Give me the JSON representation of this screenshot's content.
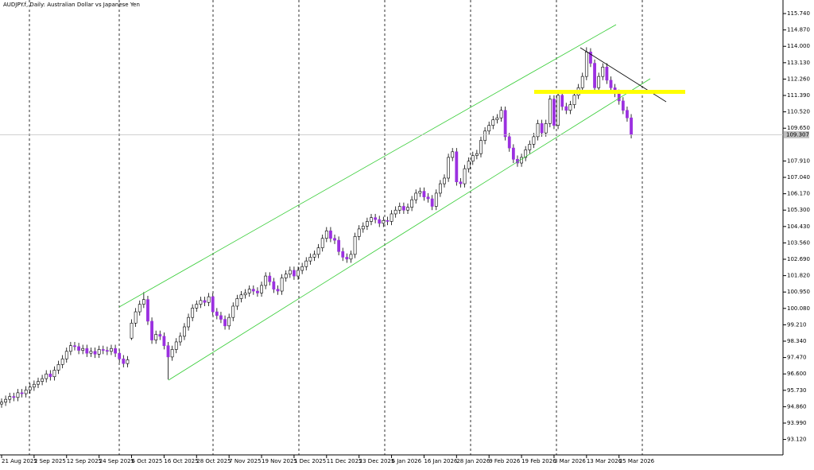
{
  "chart_data": {
    "type": "candlestick",
    "title": "AUDJPY.f, Daily:  Australian Dollar vs Japanese Yen",
    "up_color": "#ffffff",
    "down_color": "#9b30e0",
    "edge_color": "#000000",
    "ylim": [
      92.3,
      116.46
    ],
    "yticks": [
      {
        "value": 115.74,
        "label": "115.740"
      },
      {
        "value": 114.87,
        "label": "114.870"
      },
      {
        "value": 114,
        "label": "114.000"
      },
      {
        "value": 113.13,
        "label": "113.130"
      },
      {
        "value": 112.26,
        "label": "112.260"
      },
      {
        "value": 111.39,
        "label": "111.390"
      },
      {
        "value": 110.52,
        "label": "110.520"
      },
      {
        "value": 109.65,
        "label": "109.650"
      },
      {
        "value": 107.91,
        "label": "107.910"
      },
      {
        "value": 107.04,
        "label": "107.040"
      },
      {
        "value": 106.17,
        "label": "106.170"
      },
      {
        "value": 105.3,
        "label": "105.300"
      },
      {
        "value": 104.43,
        "label": "104.430"
      },
      {
        "value": 103.56,
        "label": "103.560"
      },
      {
        "value": 102.69,
        "label": "102.690"
      },
      {
        "value": 101.82,
        "label": "101.820"
      },
      {
        "value": 100.95,
        "label": "100.950"
      },
      {
        "value": 100.08,
        "label": "100.080"
      },
      {
        "value": 99.21,
        "label": "99.210"
      },
      {
        "value": 98.34,
        "label": "98.340"
      },
      {
        "value": 97.47,
        "label": "97.470"
      },
      {
        "value": 96.6,
        "label": "96.600"
      },
      {
        "value": 95.73,
        "label": "95.730"
      },
      {
        "value": 94.86,
        "label": "94.860"
      },
      {
        "value": 93.99,
        "label": "93.990"
      },
      {
        "value": 93.12,
        "label": "93.120"
      }
    ],
    "categories": [
      "21 Aug 2025",
      null,
      null,
      null,
      null,
      null,
      null,
      null,
      "2 Sep 2025",
      null,
      null,
      null,
      null,
      null,
      null,
      null,
      "12 Sep 2025",
      null,
      null,
      null,
      null,
      null,
      null,
      null,
      "24 Sep 2025",
      null,
      null,
      null,
      null,
      null,
      null,
      null,
      "6 Oct 2025",
      null,
      null,
      null,
      null,
      null,
      null,
      null,
      "16 Oct 2025",
      null,
      null,
      null,
      null,
      null,
      null,
      null,
      "28 Oct 2025",
      null,
      null,
      null,
      null,
      null,
      null,
      null,
      "7 Nov 2025",
      null,
      null,
      null,
      null,
      null,
      null,
      null,
      "19 Nov 2025",
      null,
      null,
      null,
      null,
      null,
      null,
      null,
      "1 Dec 2025",
      null,
      null,
      null,
      null,
      null,
      null,
      null,
      "11 Dec 2025",
      null,
      null,
      null,
      null,
      null,
      null,
      null,
      "23 Dec 2025",
      null,
      null,
      null,
      null,
      null,
      null,
      null,
      "6 Jan 2026",
      null,
      null,
      null,
      null,
      null,
      null,
      null,
      "16 Jan 2026",
      null,
      null,
      null,
      null,
      null,
      null,
      null,
      "28 Jan 2026",
      null,
      null,
      null,
      null,
      null,
      null,
      null,
      "9 Feb 2026",
      null,
      null,
      null,
      null,
      null,
      null,
      null,
      "19 Feb 2026",
      null,
      null,
      null,
      null,
      null,
      null,
      null,
      "3 Mar 2026",
      null,
      null,
      null,
      null,
      null,
      null,
      null,
      "13 Mar 2026",
      null,
      null,
      null,
      null,
      null,
      null,
      null,
      "25 Mar 2026",
      null,
      null,
      null
    ],
    "ohlc": [
      [
        95.0,
        95.3,
        94.8,
        95.1
      ],
      [
        95.1,
        95.45,
        94.9,
        95.25
      ],
      [
        95.25,
        95.6,
        95.05,
        95.4
      ],
      [
        95.4,
        95.6,
        95.15,
        95.35
      ],
      [
        95.35,
        95.8,
        95.15,
        95.6
      ],
      [
        95.6,
        95.8,
        95.35,
        95.55
      ],
      [
        95.55,
        95.95,
        95.35,
        95.75
      ],
      [
        95.75,
        96.1,
        95.55,
        95.9
      ],
      [
        95.9,
        96.25,
        95.7,
        96.05
      ],
      [
        96.05,
        96.4,
        95.85,
        96.2
      ],
      [
        96.2,
        96.55,
        96.0,
        96.35
      ],
      [
        96.35,
        96.8,
        96.15,
        96.6
      ],
      [
        96.6,
        96.8,
        96.25,
        96.45
      ],
      [
        96.45,
        97.0,
        96.25,
        96.8
      ],
      [
        96.8,
        97.3,
        96.6,
        97.1
      ],
      [
        97.1,
        97.6,
        96.9,
        97.4
      ],
      [
        97.4,
        98.0,
        97.2,
        97.8
      ],
      [
        97.8,
        98.3,
        97.6,
        98.1
      ],
      [
        98.1,
        98.3,
        97.85,
        98.05
      ],
      [
        98.05,
        98.25,
        97.65,
        97.85
      ],
      [
        97.85,
        98.15,
        97.65,
        97.95
      ],
      [
        97.95,
        98.15,
        97.5,
        97.7
      ],
      [
        97.7,
        98.0,
        97.5,
        97.8
      ],
      [
        97.8,
        98.0,
        97.45,
        97.65
      ],
      [
        97.65,
        98.1,
        97.45,
        97.9
      ],
      [
        97.9,
        98.1,
        97.65,
        97.85
      ],
      [
        97.85,
        98.05,
        97.6,
        97.8
      ],
      [
        97.8,
        98.15,
        97.6,
        97.95
      ],
      [
        97.95,
        98.15,
        97.5,
        97.7
      ],
      [
        97.7,
        97.9,
        97.2,
        97.4
      ],
      [
        97.4,
        97.6,
        96.95,
        97.15
      ],
      [
        97.15,
        97.55,
        96.95,
        97.35
      ],
      [
        98.5,
        99.5,
        98.4,
        99.3
      ],
      [
        99.3,
        100.1,
        99.1,
        99.9
      ],
      [
        99.9,
        100.5,
        99.7,
        100.3
      ],
      [
        100.3,
        100.95,
        100.1,
        100.55
      ],
      [
        100.55,
        100.75,
        99.2,
        99.4
      ],
      [
        99.4,
        99.6,
        98.2,
        98.4
      ],
      [
        98.4,
        98.9,
        98.2,
        98.7
      ],
      [
        98.7,
        98.9,
        98.4,
        98.6
      ],
      [
        98.6,
        98.8,
        97.9,
        98.1
      ],
      [
        98.1,
        98.3,
        96.3,
        97.5
      ],
      [
        97.5,
        98.1,
        97.3,
        97.9
      ],
      [
        97.9,
        98.5,
        97.7,
        98.3
      ],
      [
        98.3,
        98.8,
        98.1,
        98.6
      ],
      [
        98.6,
        99.3,
        98.4,
        99.1
      ],
      [
        99.1,
        99.8,
        98.9,
        99.6
      ],
      [
        99.6,
        100.3,
        99.4,
        100.1
      ],
      [
        100.1,
        100.5,
        99.9,
        100.3
      ],
      [
        100.3,
        100.7,
        100.1,
        100.5
      ],
      [
        100.5,
        100.7,
        100.2,
        100.4
      ],
      [
        100.4,
        100.9,
        100.2,
        100.7
      ],
      [
        100.7,
        100.9,
        99.7,
        99.9
      ],
      [
        99.9,
        100.1,
        99.5,
        99.7
      ],
      [
        99.7,
        99.9,
        99.3,
        99.5
      ],
      [
        99.5,
        99.7,
        98.95,
        99.15
      ],
      [
        99.15,
        99.8,
        98.95,
        99.6
      ],
      [
        99.6,
        100.4,
        99.4,
        100.2
      ],
      [
        100.2,
        100.8,
        100.0,
        100.6
      ],
      [
        100.6,
        101.0,
        100.4,
        100.8
      ],
      [
        100.8,
        101.1,
        100.6,
        100.9
      ],
      [
        100.9,
        101.3,
        100.7,
        101.1
      ],
      [
        101.1,
        101.3,
        100.8,
        101.0
      ],
      [
        101.0,
        101.2,
        100.7,
        100.9
      ],
      [
        100.9,
        101.5,
        100.7,
        101.3
      ],
      [
        101.3,
        102.0,
        101.1,
        101.8
      ],
      [
        101.8,
        102.0,
        101.3,
        101.5
      ],
      [
        101.5,
        101.7,
        100.9,
        101.1
      ],
      [
        101.1,
        101.3,
        100.8,
        101.0
      ],
      [
        101.0,
        101.9,
        100.8,
        101.7
      ],
      [
        101.7,
        102.1,
        101.5,
        101.9
      ],
      [
        101.9,
        102.3,
        101.7,
        102.1
      ],
      [
        102.1,
        102.3,
        101.6,
        101.8
      ],
      [
        101.8,
        102.3,
        101.6,
        102.1
      ],
      [
        102.1,
        102.5,
        101.9,
        102.3
      ],
      [
        102.3,
        102.8,
        102.1,
        102.6
      ],
      [
        102.6,
        103.0,
        102.4,
        102.8
      ],
      [
        102.8,
        103.15,
        102.6,
        102.95
      ],
      [
        102.95,
        103.5,
        102.75,
        103.3
      ],
      [
        103.3,
        104.0,
        103.1,
        103.8
      ],
      [
        103.8,
        104.4,
        103.6,
        104.2
      ],
      [
        104.2,
        104.4,
        103.6,
        103.8
      ],
      [
        103.8,
        104.0,
        103.5,
        103.7
      ],
      [
        103.7,
        103.9,
        102.9,
        103.1
      ],
      [
        103.1,
        103.3,
        102.6,
        102.8
      ],
      [
        102.8,
        103.0,
        102.5,
        102.7
      ],
      [
        102.7,
        103.15,
        102.5,
        102.95
      ],
      [
        102.95,
        104.1,
        102.75,
        103.9
      ],
      [
        103.9,
        104.5,
        103.7,
        104.3
      ],
      [
        104.3,
        104.65,
        104.1,
        104.45
      ],
      [
        104.45,
        104.9,
        104.25,
        104.7
      ],
      [
        104.7,
        105.1,
        104.5,
        104.9
      ],
      [
        104.9,
        105.1,
        104.6,
        104.8
      ],
      [
        104.8,
        105.0,
        104.4,
        104.6
      ],
      [
        104.6,
        104.95,
        104.4,
        104.75
      ],
      [
        104.75,
        104.95,
        104.5,
        104.7
      ],
      [
        104.7,
        105.3,
        104.5,
        105.1
      ],
      [
        105.1,
        105.5,
        104.9,
        105.3
      ],
      [
        105.3,
        105.7,
        105.1,
        105.5
      ],
      [
        105.5,
        105.7,
        105.1,
        105.3
      ],
      [
        105.3,
        105.65,
        105.1,
        105.45
      ],
      [
        105.45,
        106.05,
        105.25,
        105.85
      ],
      [
        105.85,
        106.4,
        105.65,
        106.2
      ],
      [
        106.2,
        106.5,
        106.0,
        106.3
      ],
      [
        106.3,
        106.5,
        105.8,
        106.0
      ],
      [
        106.0,
        106.2,
        105.7,
        105.9
      ],
      [
        105.9,
        106.1,
        105.3,
        105.5
      ],
      [
        105.5,
        106.4,
        105.3,
        106.2
      ],
      [
        106.2,
        106.9,
        106.0,
        106.7
      ],
      [
        106.7,
        107.2,
        106.5,
        107.0
      ],
      [
        107.0,
        108.3,
        106.8,
        108.1
      ],
      [
        108.1,
        108.6,
        107.9,
        108.4
      ],
      [
        108.4,
        108.6,
        106.6,
        106.8
      ],
      [
        106.8,
        107.0,
        106.5,
        106.7
      ],
      [
        106.7,
        107.7,
        106.5,
        107.5
      ],
      [
        107.5,
        108.1,
        107.3,
        107.9
      ],
      [
        107.9,
        108.4,
        107.7,
        108.2
      ],
      [
        108.2,
        108.5,
        108.0,
        108.3
      ],
      [
        108.3,
        109.2,
        108.1,
        109.0
      ],
      [
        109.0,
        109.7,
        108.8,
        109.5
      ],
      [
        109.5,
        110.0,
        109.3,
        109.8
      ],
      [
        109.8,
        110.3,
        109.6,
        110.1
      ],
      [
        110.1,
        110.4,
        109.9,
        110.2
      ],
      [
        110.2,
        110.8,
        110.0,
        110.6
      ],
      [
        110.6,
        110.8,
        109.0,
        109.2
      ],
      [
        109.2,
        109.4,
        108.4,
        108.6
      ],
      [
        108.6,
        108.8,
        107.8,
        108.0
      ],
      [
        108.0,
        108.2,
        107.6,
        107.8
      ],
      [
        107.8,
        108.3,
        107.6,
        108.1
      ],
      [
        108.1,
        108.7,
        107.9,
        108.5
      ],
      [
        108.5,
        109.0,
        108.3,
        108.8
      ],
      [
        108.8,
        109.4,
        108.6,
        109.2
      ],
      [
        109.2,
        110.1,
        109.0,
        109.9
      ],
      [
        109.9,
        110.1,
        109.2,
        109.4
      ],
      [
        109.4,
        110.1,
        109.2,
        109.9
      ],
      [
        109.9,
        111.4,
        109.7,
        111.2
      ],
      [
        111.2,
        111.4,
        109.6,
        109.8
      ],
      [
        109.8,
        111.6,
        109.6,
        111.4
      ],
      [
        111.4,
        111.6,
        110.6,
        110.8
      ],
      [
        110.8,
        111.0,
        110.4,
        110.6
      ],
      [
        110.6,
        111.1,
        110.4,
        110.9
      ],
      [
        110.9,
        111.6,
        110.7,
        111.4
      ],
      [
        111.4,
        112.0,
        111.2,
        111.8
      ],
      [
        111.8,
        112.6,
        111.6,
        112.4
      ],
      [
        112.4,
        113.95,
        112.2,
        113.7
      ],
      [
        113.7,
        113.9,
        112.9,
        113.1
      ],
      [
        113.1,
        113.3,
        111.6,
        111.8
      ],
      [
        111.8,
        112.6,
        111.6,
        112.4
      ],
      [
        112.4,
        113.1,
        112.2,
        112.9
      ],
      [
        112.9,
        113.1,
        112.0,
        112.2
      ],
      [
        112.2,
        112.4,
        111.6,
        111.8
      ],
      [
        111.8,
        112.0,
        111.3,
        111.5
      ],
      [
        111.5,
        111.7,
        110.9,
        111.1
      ],
      [
        111.1,
        111.3,
        110.4,
        110.6
      ],
      [
        110.6,
        110.8,
        110.0,
        110.2
      ],
      [
        110.2,
        110.4,
        109.11,
        109.307
      ]
    ]
  }
}
